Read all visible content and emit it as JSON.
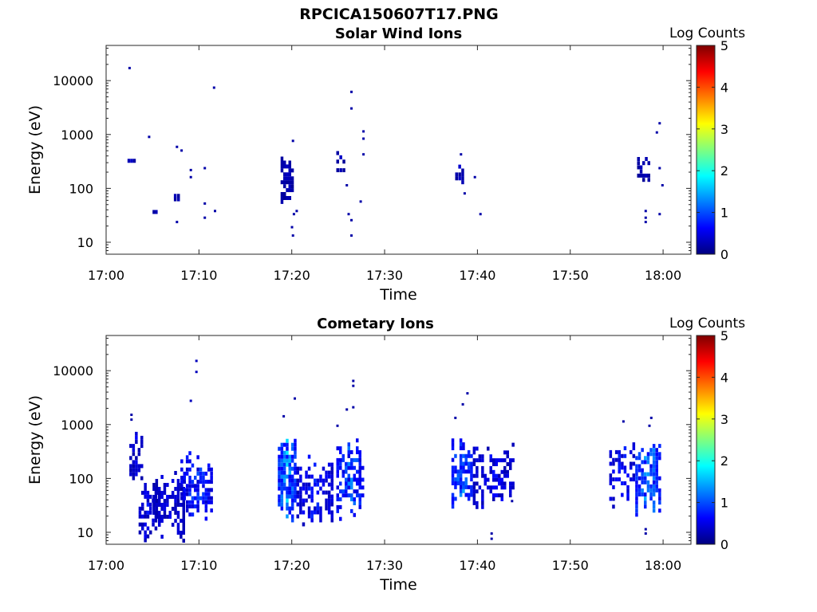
{
  "figure_title": "RPCICA150607T17.PNG",
  "colormap": [
    "#00007f",
    "#0000ff",
    "#007fff",
    "#00ffff",
    "#7fff7f",
    "#ffff00",
    "#ff7f00",
    "#ff0000",
    "#7f0000"
  ],
  "chart_data": [
    {
      "type": "heatmap",
      "title": "Solar Wind Ions",
      "xlabel": "Time",
      "ylabel": "Energy (eV)",
      "x_ticks": [
        "17:00",
        "17:10",
        "17:20",
        "17:30",
        "17:40",
        "17:50",
        "18:00"
      ],
      "xlim": [
        "17:00",
        "18:03"
      ],
      "y_ticks": [
        "10",
        "100",
        "1000",
        "10000"
      ],
      "y_scale": "log",
      "ylim": [
        6,
        45000
      ],
      "colorbar": {
        "label": "Log Counts",
        "ticks": [
          "0",
          "1",
          "2",
          "3",
          "4",
          "5"
        ],
        "range": [
          0,
          5
        ]
      },
      "clusters": [
        {
          "t0": "17:02.3",
          "t1": "17:03.2",
          "e_min": 330,
          "e_max": 380,
          "level": 0.3,
          "density": 0.9
        },
        {
          "t0": "17:05.0",
          "t1": "17:05.5",
          "e_min": 35,
          "e_max": 45,
          "level": 0.3,
          "density": 0.9
        },
        {
          "t0": "17:07.3",
          "t1": "17:08.0",
          "e_min": 55,
          "e_max": 85,
          "level": 0.3,
          "density": 0.7
        },
        {
          "t0": "17:18.8",
          "t1": "17:20.2",
          "e_min": 40,
          "e_max": 500,
          "level": 0.3,
          "density": 0.65
        },
        {
          "t0": "17:24.8",
          "t1": "17:25.8",
          "e_min": 180,
          "e_max": 540,
          "level": 0.3,
          "density": 0.6
        },
        {
          "t0": "17:37.6",
          "t1": "17:38.6",
          "e_min": 130,
          "e_max": 300,
          "level": 0.3,
          "density": 0.7
        },
        {
          "t0": "17:57.2",
          "t1": "17:58.6",
          "e_min": 120,
          "e_max": 500,
          "level": 0.3,
          "density": 0.6
        }
      ],
      "points": [
        {
          "t": "17:02.4",
          "e": 18000,
          "level": 0.2
        },
        {
          "t": "17:04.5",
          "e": 950,
          "level": 0.2
        },
        {
          "t": "17:07.5",
          "e": 620,
          "level": 0.2
        },
        {
          "t": "17:08.0",
          "e": 530,
          "level": 0.2
        },
        {
          "t": "17:07.5",
          "e": 25,
          "level": 0.2
        },
        {
          "t": "17:09.0",
          "e": 230,
          "level": 0.2
        },
        {
          "t": "17:09.0",
          "e": 170,
          "level": 0.2
        },
        {
          "t": "17:10.5",
          "e": 250,
          "level": 0.2
        },
        {
          "t": "17:10.5",
          "e": 55,
          "level": 0.2
        },
        {
          "t": "17:10.5",
          "e": 30,
          "level": 0.2
        },
        {
          "t": "17:11.6",
          "e": 40,
          "level": 0.2
        },
        {
          "t": "17:11.5",
          "e": 7800,
          "level": 0.2
        },
        {
          "t": "17:20.0",
          "e": 800,
          "level": 0.2
        },
        {
          "t": "17:20.1",
          "e": 35,
          "level": 0.2
        },
        {
          "t": "17:20.4",
          "e": 40,
          "level": 0.2
        },
        {
          "t": "17:19.9",
          "e": 20,
          "level": 0.2
        },
        {
          "t": "17:20.0",
          "e": 14,
          "level": 0.2
        },
        {
          "t": "17:26.3",
          "e": 6500,
          "level": 0.2
        },
        {
          "t": "17:26.3",
          "e": 3200,
          "level": 0.2
        },
        {
          "t": "17:27.6",
          "e": 1200,
          "level": 0.2
        },
        {
          "t": "17:27.6",
          "e": 880,
          "level": 0.2
        },
        {
          "t": "17:27.6",
          "e": 450,
          "level": 0.2
        },
        {
          "t": "17:26.0",
          "e": 35,
          "level": 0.2
        },
        {
          "t": "17:26.3",
          "e": 27,
          "level": 0.2
        },
        {
          "t": "17:26.3",
          "e": 14,
          "level": 0.2
        },
        {
          "t": "17:27.3",
          "e": 60,
          "level": 0.2
        },
        {
          "t": "17:25.8",
          "e": 120,
          "level": 0.2
        },
        {
          "t": "17:38.1",
          "e": 450,
          "level": 0.2
        },
        {
          "t": "17:39.6",
          "e": 170,
          "level": 0.2
        },
        {
          "t": "17:38.5",
          "e": 85,
          "level": 0.2
        },
        {
          "t": "17:40.2",
          "e": 35,
          "level": 0.2
        },
        {
          "t": "17:59.5",
          "e": 1700,
          "level": 0.2
        },
        {
          "t": "17:59.2",
          "e": 1150,
          "level": 0.2
        },
        {
          "t": "17:59.5",
          "e": 250,
          "level": 0.2
        },
        {
          "t": "17:59.8",
          "e": 120,
          "level": 0.2
        },
        {
          "t": "17:58.0",
          "e": 40,
          "level": 0.2
        },
        {
          "t": "17:58.0",
          "e": 30,
          "level": 0.2
        },
        {
          "t": "17:58.0",
          "e": 25,
          "level": 0.2
        },
        {
          "t": "17:59.5",
          "e": 35,
          "level": 0.2
        }
      ]
    },
    {
      "type": "heatmap",
      "title": "Cometary Ions",
      "xlabel": "Time",
      "ylabel": "Energy (eV)",
      "x_ticks": [
        "17:00",
        "17:10",
        "17:20",
        "17:30",
        "17:40",
        "17:50",
        "18:00"
      ],
      "xlim": [
        "17:00",
        "18:03"
      ],
      "y_ticks": [
        "10",
        "100",
        "1000",
        "10000"
      ],
      "y_scale": "log",
      "ylim": [
        6,
        45000
      ],
      "colorbar": {
        "label": "Log Counts",
        "ticks": [
          "0",
          "1",
          "2",
          "3",
          "4",
          "5"
        ],
        "range": [
          0,
          5
        ]
      },
      "clusters": [
        {
          "t0": "17:02.5",
          "t1": "17:04.0",
          "e_min": 60,
          "e_max": 800,
          "level": 0.5,
          "density": 0.7
        },
        {
          "t0": "17:03.5",
          "t1": "17:05.5",
          "e_min": 6,
          "e_max": 90,
          "level": 0.6,
          "density": 0.55
        },
        {
          "t0": "17:05.0",
          "t1": "17:08.5",
          "e_min": 7,
          "e_max": 150,
          "level": 0.5,
          "density": 0.6
        },
        {
          "t0": "17:08.0",
          "t1": "17:11.5",
          "e_min": 15,
          "e_max": 350,
          "level": 0.9,
          "density": 0.6
        },
        {
          "t0": "17:18.5",
          "t1": "17:20.5",
          "e_min": 10,
          "e_max": 700,
          "level": 1.4,
          "density": 0.85
        },
        {
          "t0": "17:20.5",
          "t1": "17:24.5",
          "e_min": 10,
          "e_max": 300,
          "level": 0.7,
          "density": 0.55
        },
        {
          "t0": "17:24.8",
          "t1": "17:27.8",
          "e_min": 15,
          "e_max": 600,
          "level": 1.1,
          "density": 0.65
        },
        {
          "t0": "17:37.2",
          "t1": "17:39.5",
          "e_min": 30,
          "e_max": 600,
          "level": 1.2,
          "density": 0.75
        },
        {
          "t0": "17:39.5",
          "t1": "17:44.0",
          "e_min": 25,
          "e_max": 500,
          "level": 0.6,
          "density": 0.5
        },
        {
          "t0": "17:54.2",
          "t1": "17:57.0",
          "e_min": 30,
          "e_max": 600,
          "level": 0.7,
          "density": 0.5
        },
        {
          "t0": "17:57.0",
          "t1": "17:59.8",
          "e_min": 15,
          "e_max": 800,
          "level": 1.3,
          "density": 0.8
        }
      ],
      "points": [
        {
          "t": "17:02.6",
          "e": 1600,
          "level": 0.2
        },
        {
          "t": "17:02.6",
          "e": 1300,
          "level": 0.2
        },
        {
          "t": "17:09.6",
          "e": 16000,
          "level": 0.3
        },
        {
          "t": "17:09.6",
          "e": 10000,
          "level": 0.3
        },
        {
          "t": "17:09.0",
          "e": 2900,
          "level": 0.3
        },
        {
          "t": "17:20.2",
          "e": 3200,
          "level": 0.2
        },
        {
          "t": "17:19.0",
          "e": 1500,
          "level": 0.2
        },
        {
          "t": "17:26.5",
          "e": 6800,
          "level": 0.2
        },
        {
          "t": "17:26.5",
          "e": 5500,
          "level": 0.2
        },
        {
          "t": "17:25.8",
          "e": 2000,
          "level": 0.2
        },
        {
          "t": "17:26.5",
          "e": 2200,
          "level": 0.2
        },
        {
          "t": "17:24.8",
          "e": 1000,
          "level": 0.2
        },
        {
          "t": "17:38.8",
          "e": 4000,
          "level": 0.2
        },
        {
          "t": "17:38.3",
          "e": 2500,
          "level": 0.2
        },
        {
          "t": "17:37.5",
          "e": 1400,
          "level": 0.2
        },
        {
          "t": "17:43.6",
          "e": 40,
          "level": 0.2
        },
        {
          "t": "17:41.4",
          "e": 10,
          "level": 0.2
        },
        {
          "t": "17:41.4",
          "e": 8,
          "level": 0.2
        },
        {
          "t": "17:55.6",
          "e": 1200,
          "level": 0.2
        },
        {
          "t": "17:58.6",
          "e": 1400,
          "level": 0.2
        },
        {
          "t": "17:58.4",
          "e": 1000,
          "level": 0.2
        },
        {
          "t": "17:58.0",
          "e": 12,
          "level": 0.2
        },
        {
          "t": "17:58.0",
          "e": 10,
          "level": 0.2
        }
      ]
    }
  ]
}
